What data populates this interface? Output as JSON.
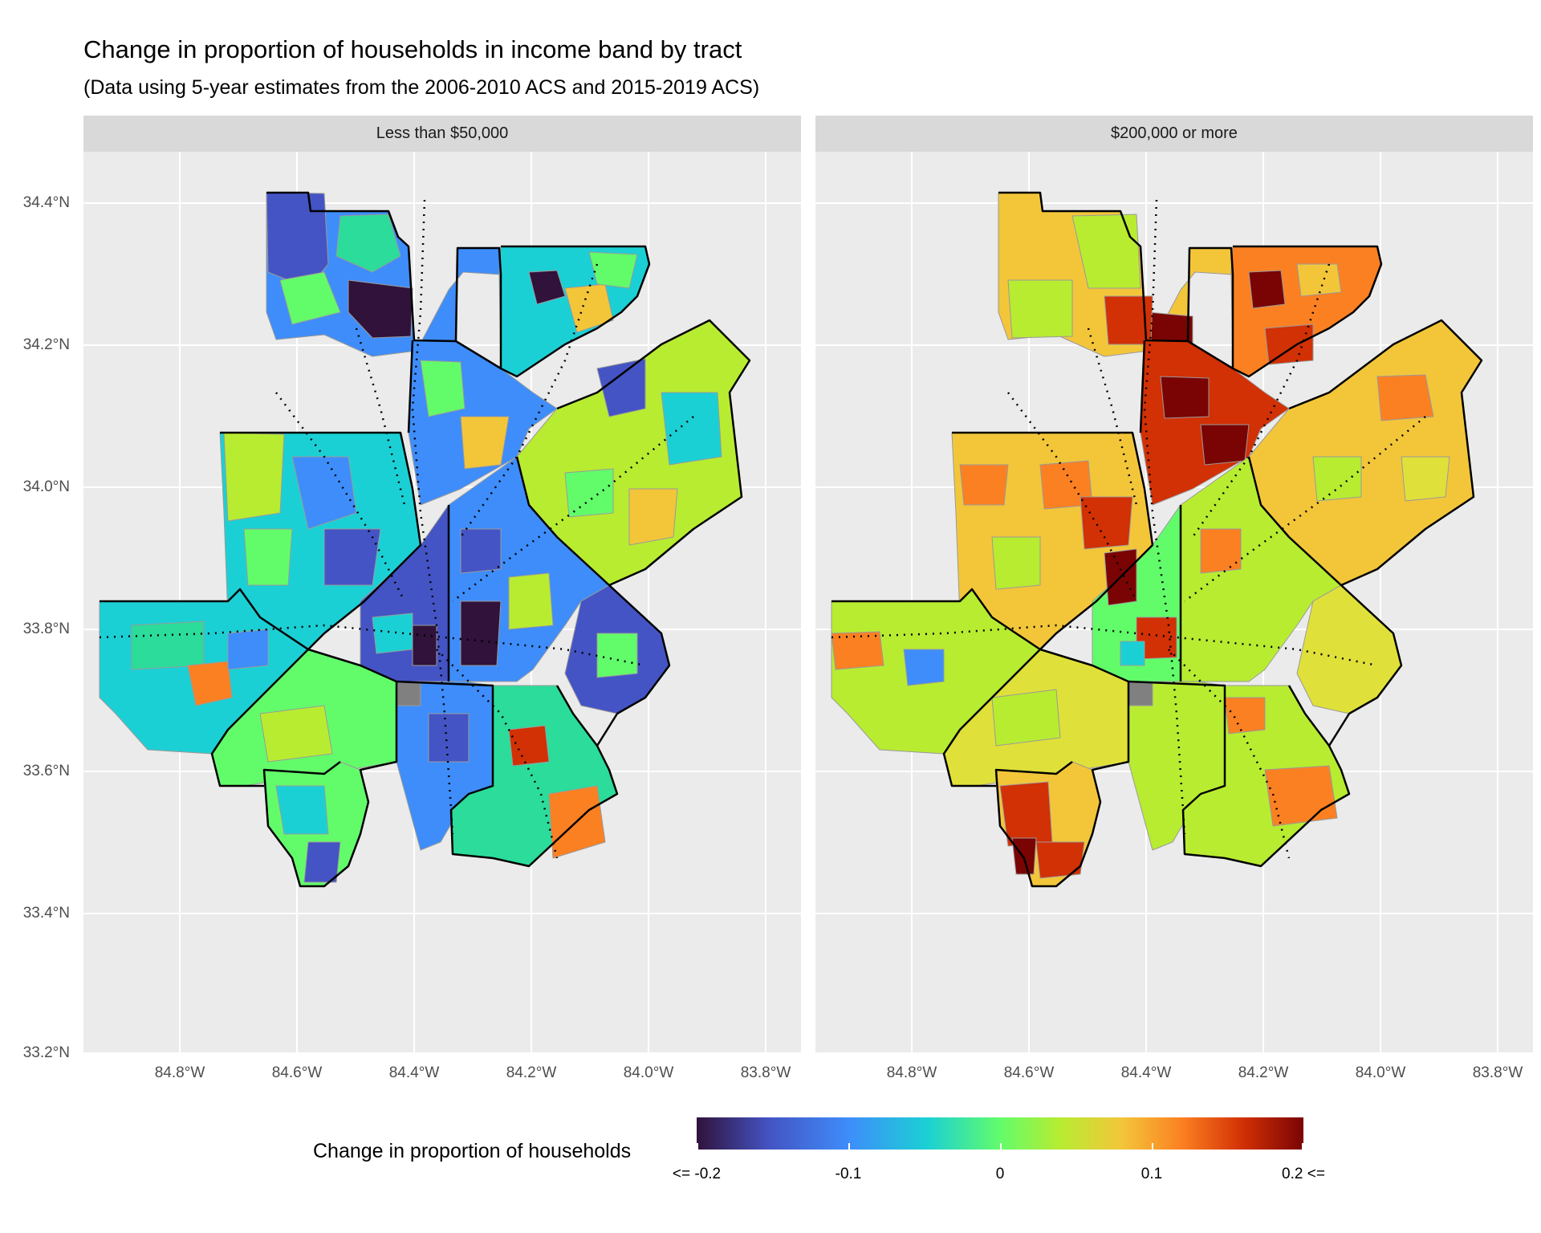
{
  "title": "Change in proportion of households in income band by tract",
  "subtitle": "(Data using 5-year estimates from the 2006-2010 ACS and 2015-2019 ACS)",
  "panels": [
    {
      "label": "Less than $50,000"
    },
    {
      "label": "$200,000 or more"
    }
  ],
  "axes": {
    "y_ticks": [
      "34.4°N",
      "34.2°N",
      "34.0°N",
      "33.8°N",
      "33.6°N",
      "33.4°N",
      "33.2°N"
    ],
    "x_ticks": [
      "84.8°W",
      "84.6°W",
      "84.4°W",
      "84.2°W",
      "84.0°W",
      "83.8°W"
    ]
  },
  "legend": {
    "title": "Change in proportion of households",
    "ticks": [
      "<= -0.2",
      "-0.1",
      "0",
      "0.1",
      "0.2 <="
    ],
    "range": [
      -0.2,
      0.2
    ],
    "palette": [
      "#30123b",
      "#4454c4",
      "#3e8dfa",
      "#1bd0d5",
      "#62fc6b",
      "#b8ec31",
      "#f3c63a",
      "#fb8022",
      "#d23005",
      "#7a0403"
    ]
  },
  "colors": {
    "panel_bg": "#ebebeb",
    "strip_bg": "#d9d9d9",
    "missing": "#808080"
  }
}
